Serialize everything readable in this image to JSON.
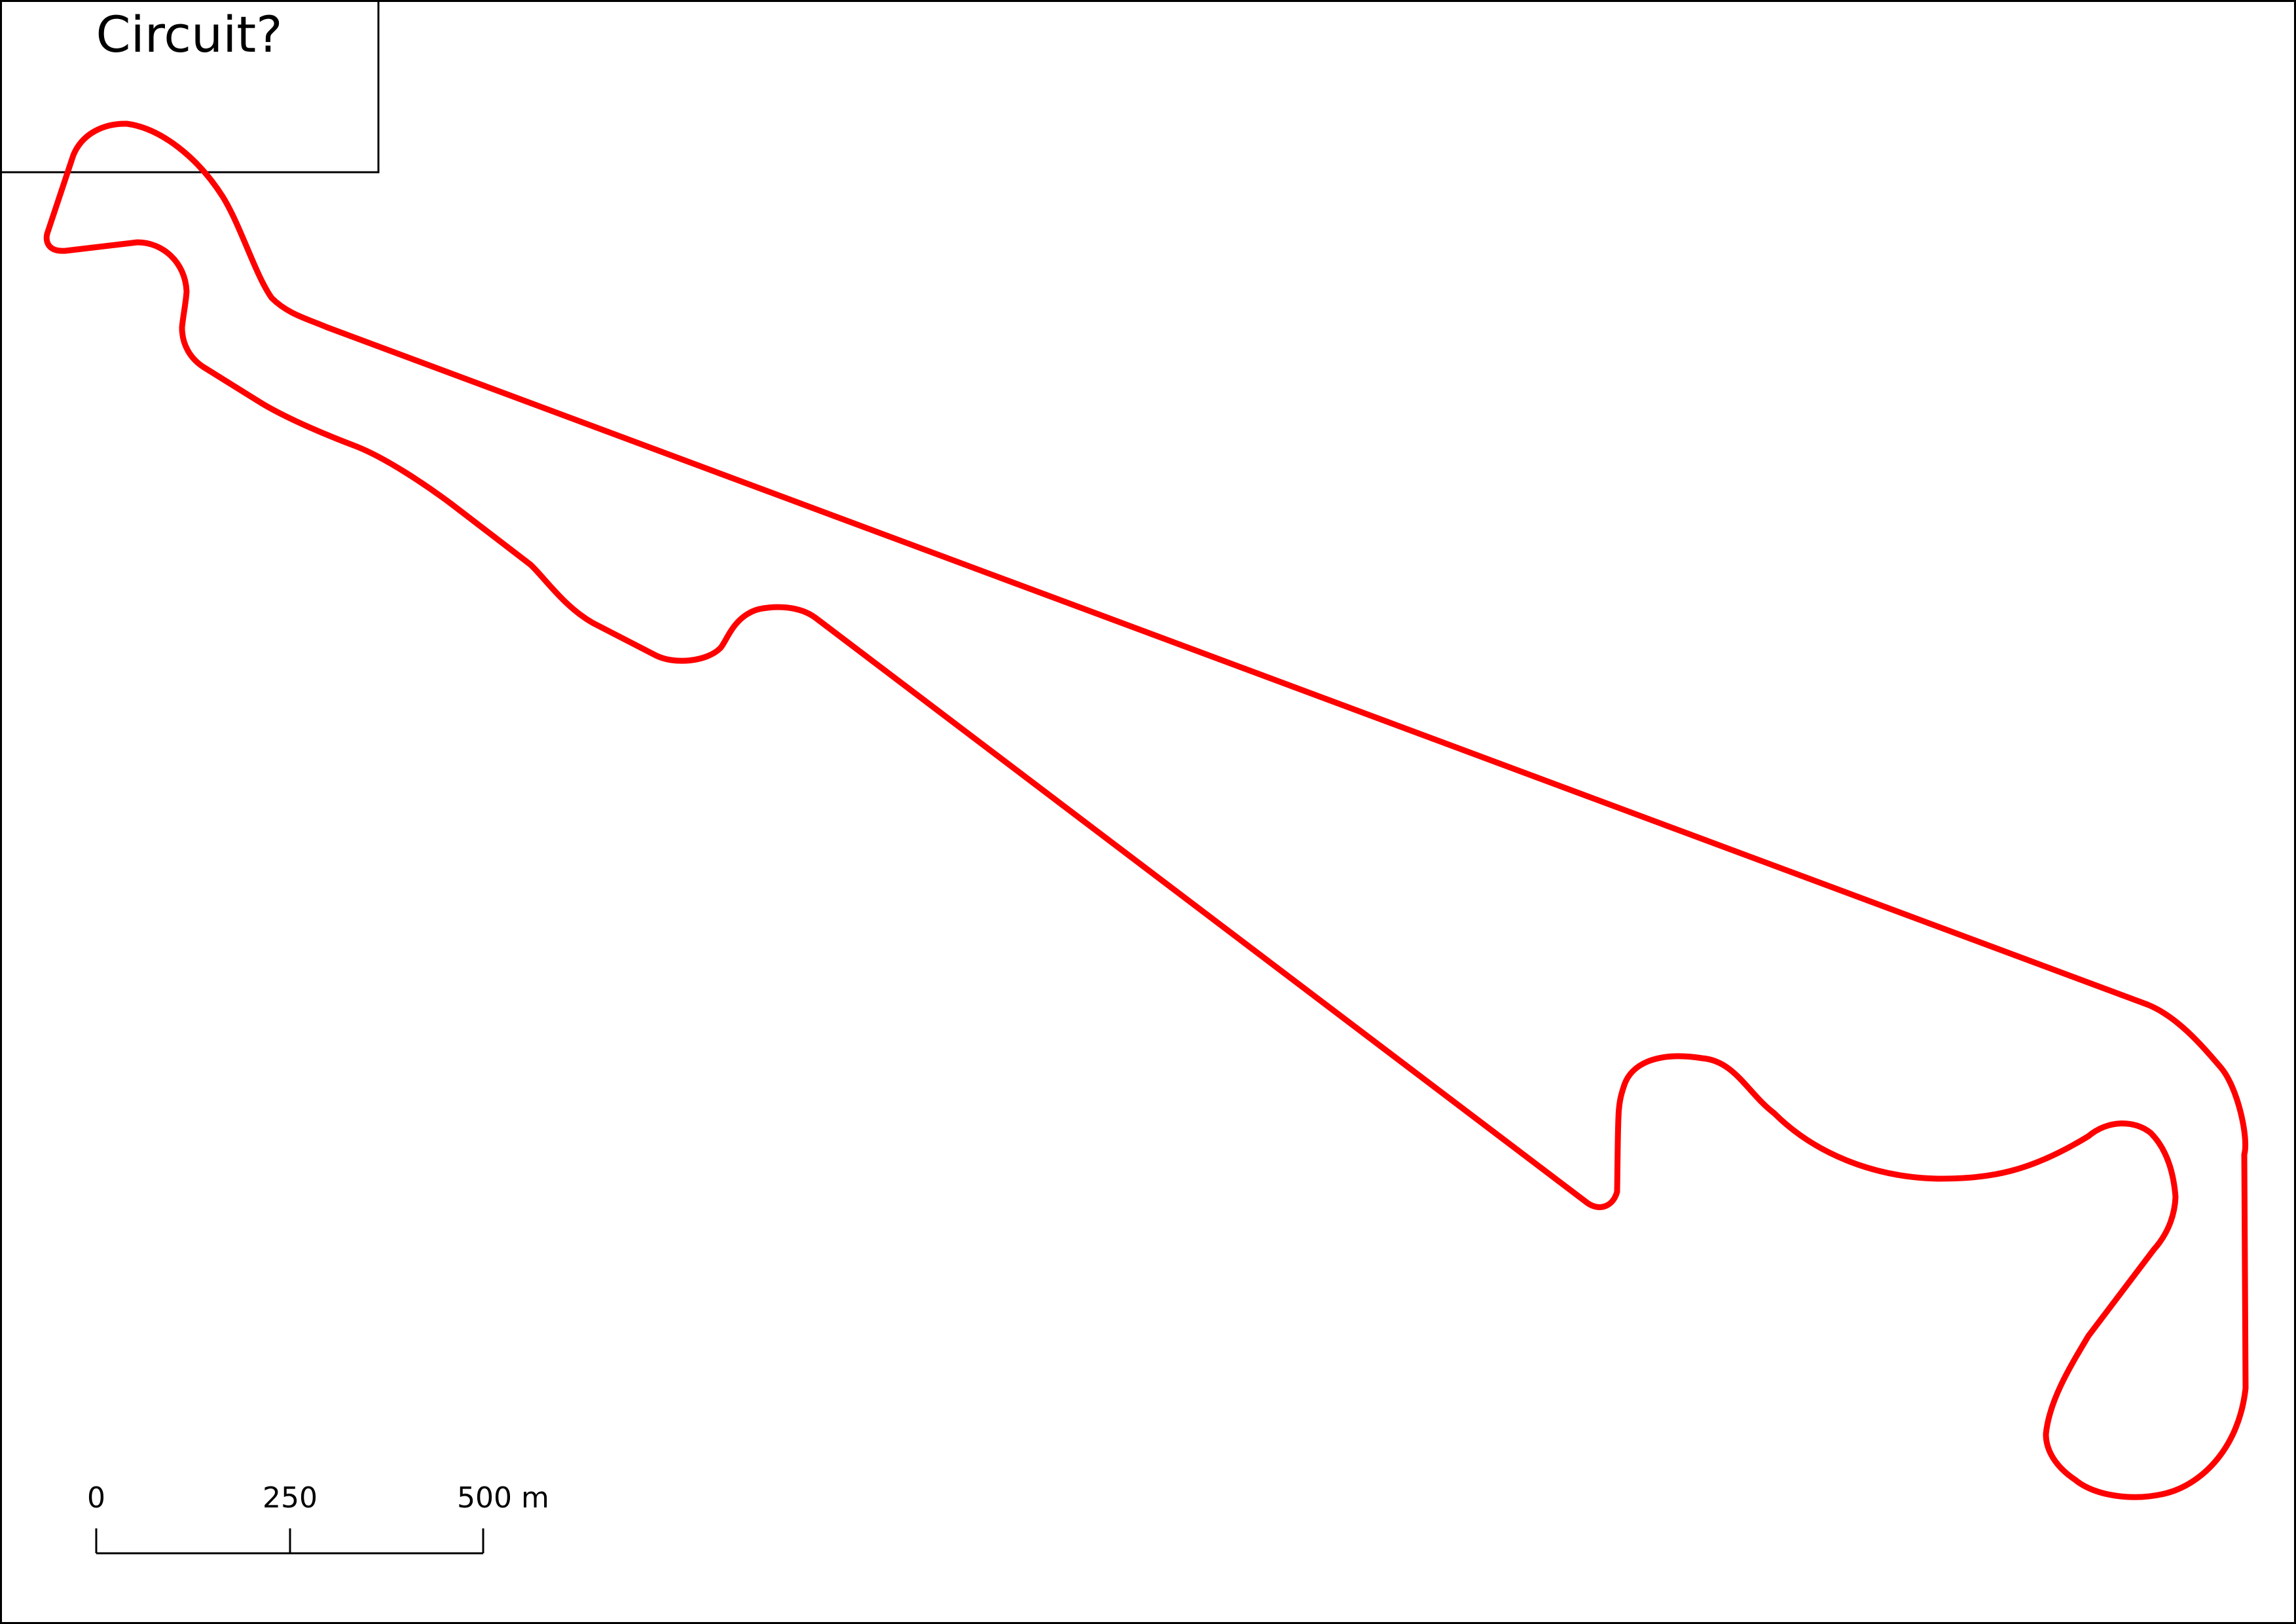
{
  "title": "Circuit?",
  "track": {
    "color": "#ff0000"
  },
  "scale_bar": {
    "labels": [
      "0",
      "250",
      "500 m"
    ]
  }
}
